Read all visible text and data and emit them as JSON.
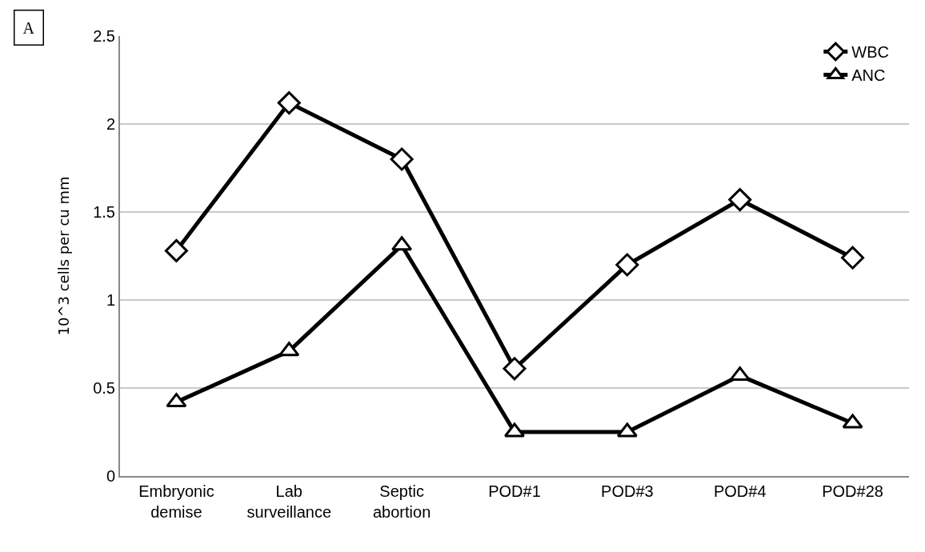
{
  "chart_data": {
    "type": "line",
    "ylabel": "10^3 cells per cu mm",
    "annotations": [
      "A"
    ],
    "categories": [
      "Embryonic demise",
      "Lab surveillance",
      "Septic abortion",
      "POD#1",
      "POD#3",
      "POD#4",
      "POD#28"
    ],
    "series": [
      {
        "name": "WBC",
        "color": "#000000",
        "marker": "diamond",
        "values": [
          1.28,
          2.12,
          1.8,
          0.61,
          1.2,
          1.57,
          1.24
        ]
      },
      {
        "name": "ANC",
        "color": "#000000",
        "marker": "triangle",
        "values": [
          0.42,
          0.71,
          1.31,
          0.25,
          0.25,
          0.57,
          0.3
        ]
      }
    ],
    "ylim": [
      0,
      2.5
    ],
    "yticks": [
      0,
      0.5,
      1,
      1.5,
      2,
      2.5
    ],
    "grid": "y",
    "legend": "top right",
    "line_style": "solid"
  }
}
